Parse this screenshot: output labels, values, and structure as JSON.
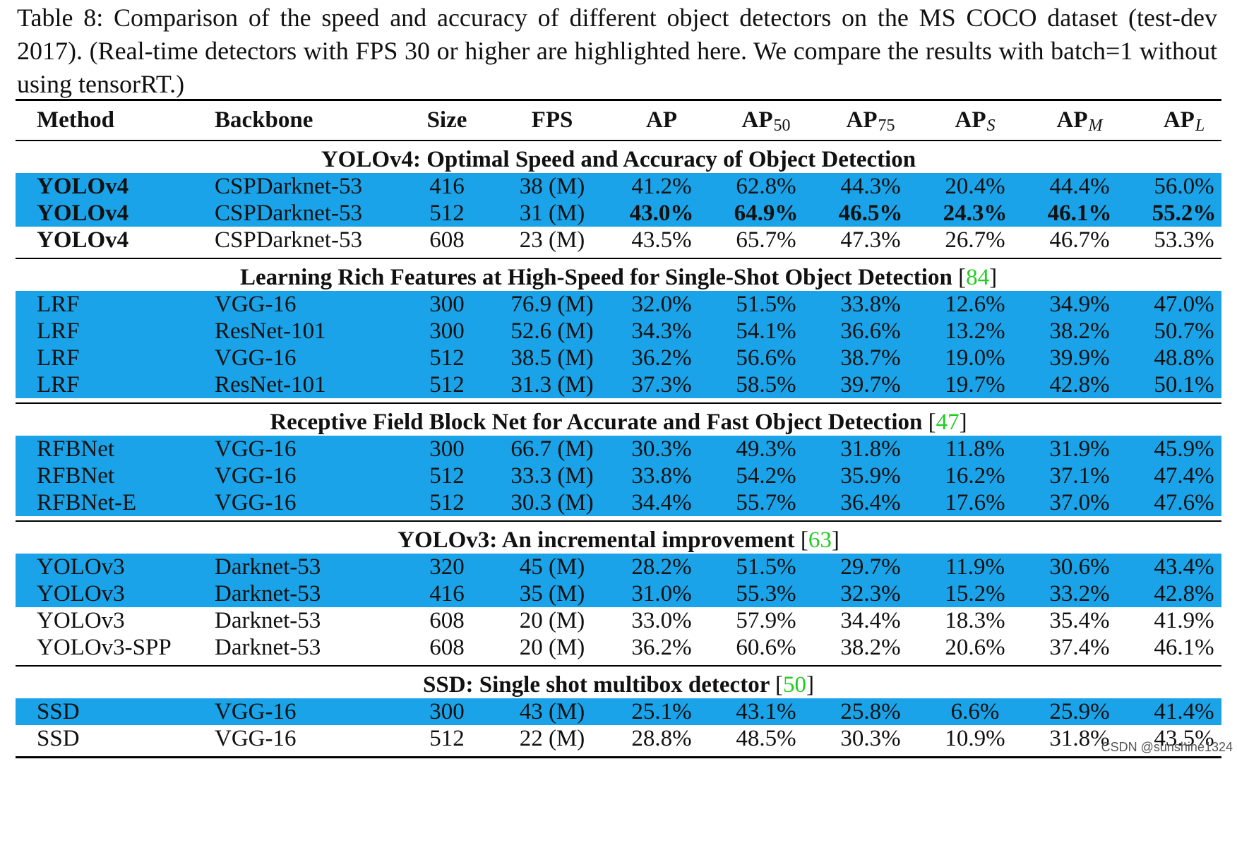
{
  "caption": "Table 8: Comparison of the speed and accuracy of different object detectors on the MS COCO dataset (test-dev 2017). (Real-time detectors with FPS 30 or higher are highlighted here. We compare the results with batch=1 without using tensorRT.)",
  "header": {
    "method": "Method",
    "backbone": "Backbone",
    "size": "Size",
    "fps": "FPS",
    "ap": "AP",
    "ap50": "AP",
    "ap50_sub": "50",
    "ap75": "AP",
    "ap75_sub": "75",
    "aps": "AP",
    "aps_sub": "S",
    "apm": "AP",
    "apm_sub": "M",
    "apl": "AP",
    "apl_sub": "L"
  },
  "groups": [
    {
      "title": "YOLOv4: Optimal Speed and Accuracy of Object Detection",
      "cite": "",
      "rows": [
        {
          "method": "YOLOv4",
          "backbone": "CSPDarknet-53",
          "size": "416",
          "fps": "38 (M)",
          "ap": "41.2%",
          "ap50": "62.8%",
          "ap75": "44.3%",
          "aps": "20.4%",
          "apm": "44.4%",
          "apl": "56.0%"
        },
        {
          "method": "YOLOv4",
          "backbone": "CSPDarknet-53",
          "size": "512",
          "fps": "31 (M)",
          "ap": "43.0%",
          "ap50": "64.9%",
          "ap75": "46.5%",
          "aps": "24.3%",
          "apm": "46.1%",
          "apl": "55.2%"
        },
        {
          "method": "YOLOv4",
          "backbone": "CSPDarknet-53",
          "size": "608",
          "fps": "23 (M)",
          "ap": "43.5%",
          "ap50": "65.7%",
          "ap75": "47.3%",
          "aps": "26.7%",
          "apm": "46.7%",
          "apl": "53.3%"
        }
      ]
    },
    {
      "title": "Learning Rich Features at High-Speed for Single-Shot Object Detection",
      "cite": "84",
      "rows": [
        {
          "method": "LRF",
          "backbone": "VGG-16",
          "size": "300",
          "fps": "76.9 (M)",
          "ap": "32.0%",
          "ap50": "51.5%",
          "ap75": "33.8%",
          "aps": "12.6%",
          "apm": "34.9%",
          "apl": "47.0%"
        },
        {
          "method": "LRF",
          "backbone": "ResNet-101",
          "size": "300",
          "fps": "52.6 (M)",
          "ap": "34.3%",
          "ap50": "54.1%",
          "ap75": "36.6%",
          "aps": "13.2%",
          "apm": "38.2%",
          "apl": "50.7%"
        },
        {
          "method": "LRF",
          "backbone": "VGG-16",
          "size": "512",
          "fps": "38.5 (M)",
          "ap": "36.2%",
          "ap50": "56.6%",
          "ap75": "38.7%",
          "aps": "19.0%",
          "apm": "39.9%",
          "apl": "48.8%"
        },
        {
          "method": "LRF",
          "backbone": "ResNet-101",
          "size": "512",
          "fps": "31.3 (M)",
          "ap": "37.3%",
          "ap50": "58.5%",
          "ap75": "39.7%",
          "aps": "19.7%",
          "apm": "42.8%",
          "apl": "50.1%"
        }
      ]
    },
    {
      "title": "Receptive Field Block Net for Accurate and Fast Object Detection",
      "cite": "47",
      "rows": [
        {
          "method": "RFBNet",
          "backbone": "VGG-16",
          "size": "300",
          "fps": "66.7 (M)",
          "ap": "30.3%",
          "ap50": "49.3%",
          "ap75": "31.8%",
          "aps": "11.8%",
          "apm": "31.9%",
          "apl": "45.9%"
        },
        {
          "method": "RFBNet",
          "backbone": "VGG-16",
          "size": "512",
          "fps": "33.3 (M)",
          "ap": "33.8%",
          "ap50": "54.2%",
          "ap75": "35.9%",
          "aps": "16.2%",
          "apm": "37.1%",
          "apl": "47.4%"
        },
        {
          "method": "RFBNet-E",
          "backbone": "VGG-16",
          "size": "512",
          "fps": "30.3 (M)",
          "ap": "34.4%",
          "ap50": "55.7%",
          "ap75": "36.4%",
          "aps": "17.6%",
          "apm": "37.0%",
          "apl": "47.6%"
        }
      ]
    },
    {
      "title": "YOLOv3: An incremental improvement",
      "cite": "63",
      "rows": [
        {
          "method": "YOLOv3",
          "backbone": "Darknet-53",
          "size": "320",
          "fps": "45 (M)",
          "ap": "28.2%",
          "ap50": "51.5%",
          "ap75": "29.7%",
          "aps": "11.9%",
          "apm": "30.6%",
          "apl": "43.4%"
        },
        {
          "method": "YOLOv3",
          "backbone": "Darknet-53",
          "size": "416",
          "fps": "35 (M)",
          "ap": "31.0%",
          "ap50": "55.3%",
          "ap75": "32.3%",
          "aps": "15.2%",
          "apm": "33.2%",
          "apl": "42.8%"
        },
        {
          "method": "YOLOv3",
          "backbone": "Darknet-53",
          "size": "608",
          "fps": "20 (M)",
          "ap": "33.0%",
          "ap50": "57.9%",
          "ap75": "34.4%",
          "aps": "18.3%",
          "apm": "35.4%",
          "apl": "41.9%"
        },
        {
          "method": "YOLOv3-SPP",
          "backbone": "Darknet-53",
          "size": "608",
          "fps": "20 (M)",
          "ap": "36.2%",
          "ap50": "60.6%",
          "ap75": "38.2%",
          "aps": "20.6%",
          "apm": "37.4%",
          "apl": "46.1%"
        }
      ]
    },
    {
      "title": "SSD: Single shot multibox detector",
      "cite": "50",
      "rows": [
        {
          "method": "SSD",
          "backbone": "VGG-16",
          "size": "300",
          "fps": "43 (M)",
          "ap": "25.1%",
          "ap50": "43.1%",
          "ap75": "25.8%",
          "aps": "6.6%",
          "apm": "25.9%",
          "apl": "41.4%"
        },
        {
          "method": "SSD",
          "backbone": "VGG-16",
          "size": "512",
          "fps": "22 (M)",
          "ap": "28.8%",
          "ap50": "48.5%",
          "ap75": "30.3%",
          "aps": "10.9%",
          "apm": "31.8%",
          "apl": "43.5%"
        }
      ]
    }
  ],
  "highlight_color": "#1aa3e8",
  "cite_color": "#22cc22",
  "watermark": "CSDN @sunshine1324"
}
